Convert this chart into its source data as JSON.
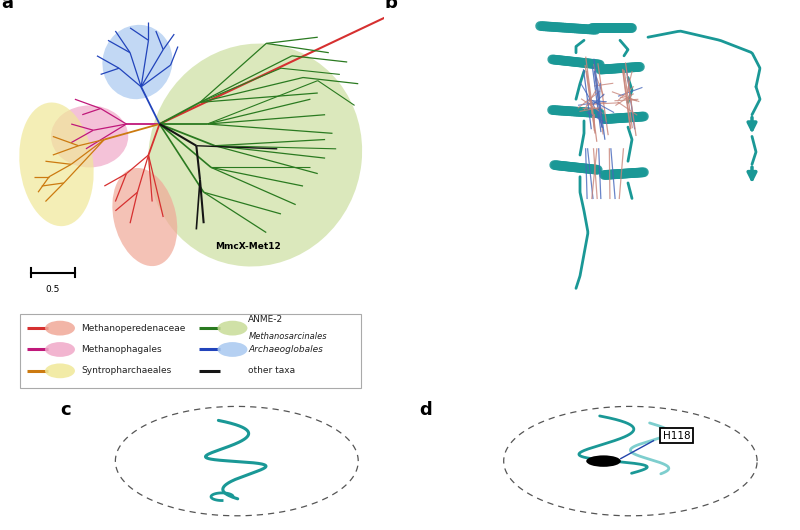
{
  "panel_labels": [
    "a",
    "b",
    "c",
    "d"
  ],
  "bg_color": "#ffffff",
  "tree_colors": {
    "red": "#d63030",
    "magenta": "#c0187a",
    "orange": "#cc7a10",
    "green": "#2a7a20",
    "blue": "#2244bb",
    "black": "#151515"
  },
  "blob_colors": {
    "salmon": "#f0a898",
    "pink": "#f0a8c8",
    "yellow": "#f0e898",
    "green": "#c8dc98",
    "lightblue": "#a8c8f0"
  },
  "teal_color": "#1a9896",
  "teal_light": "#7ecece",
  "protein_color": "#c8857a",
  "blue_stick": "#4466bb",
  "dashed_circle_color": "#555555"
}
